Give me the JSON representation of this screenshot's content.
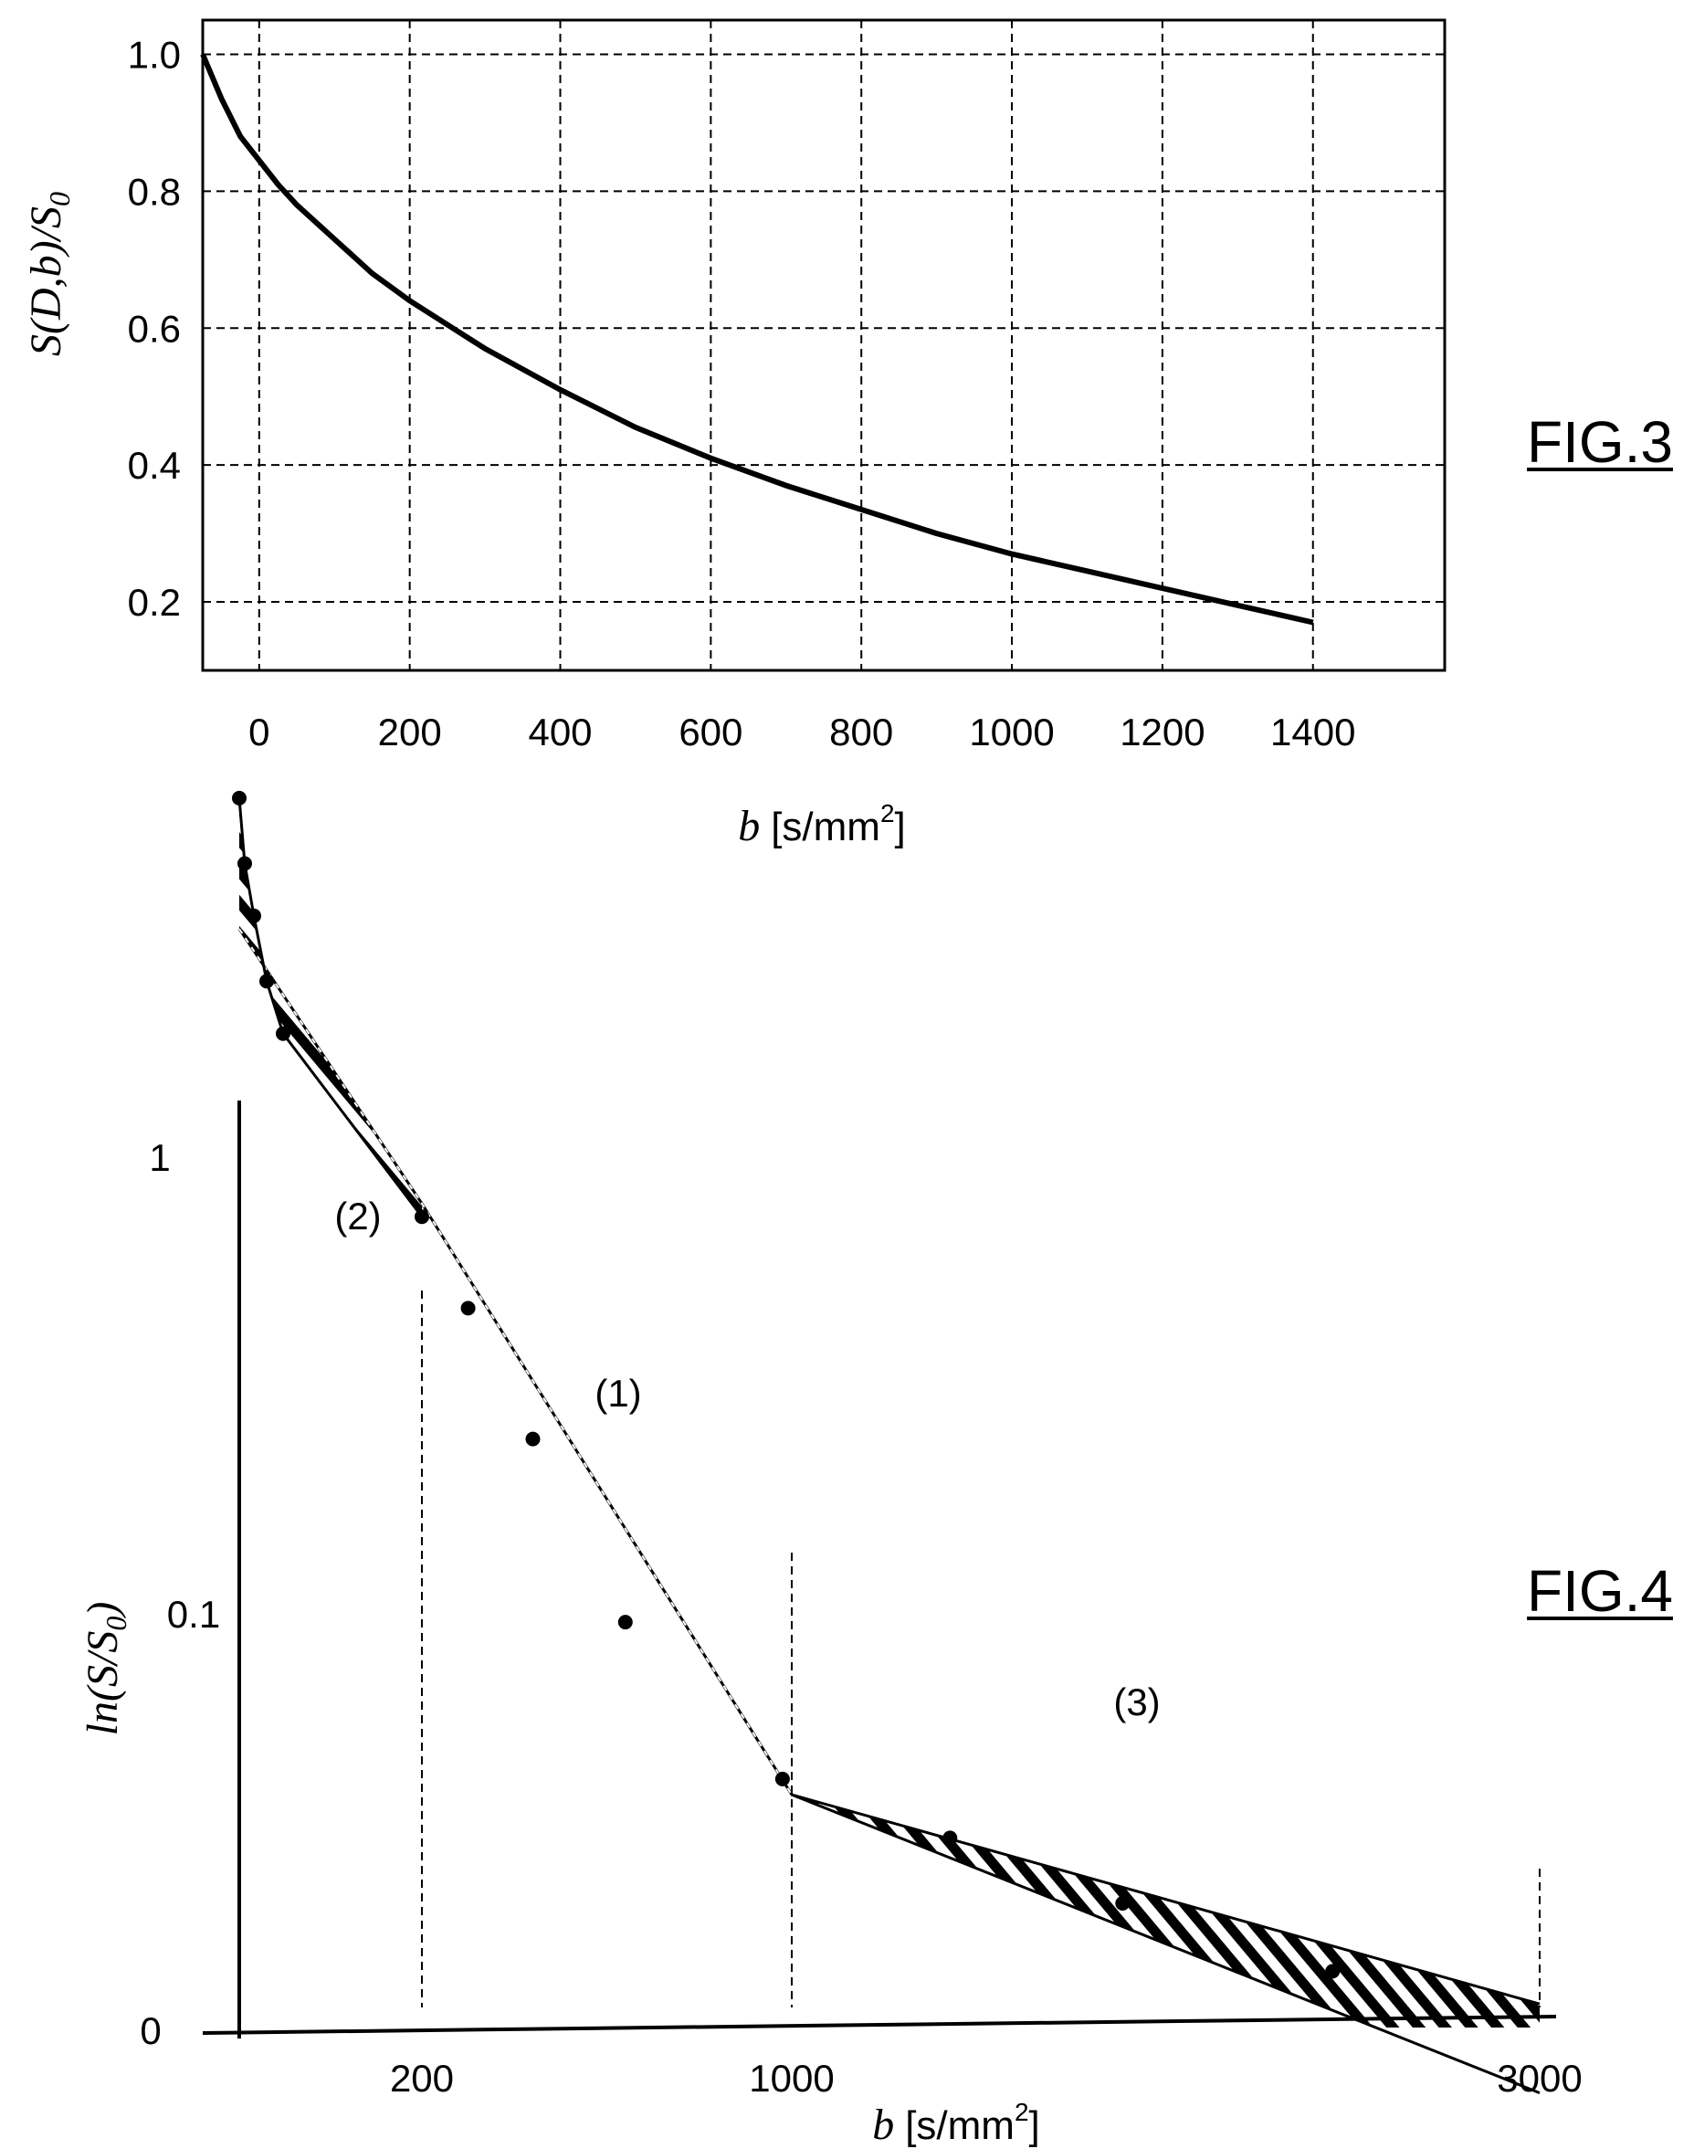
{
  "chart_data": [
    {
      "figure_label": "FIG.3",
      "type": "line",
      "xlabel_var": "b",
      "xlabel_unit": "[s/mm",
      "xlabel_sup": "2",
      "xlabel_close": "]",
      "ylabel": "S(D,b)/S",
      "ylabel_sub": "0",
      "xlim": [
        -75,
        1575
      ],
      "ylim": [
        0.1,
        1.05
      ],
      "x_ticks": [
        "0",
        "200",
        "400",
        "600",
        "800",
        "1000",
        "1200",
        "1400"
      ],
      "y_ticks": [
        "1.0",
        "0.8",
        "0.6",
        "0.4",
        "0.2"
      ],
      "grid": true,
      "series": [
        {
          "x": [
            -75,
            -50,
            -25,
            0,
            25,
            50,
            100,
            150,
            200,
            250,
            300,
            400,
            500,
            600,
            700,
            800,
            900,
            1000,
            1100,
            1200,
            1300,
            1400
          ],
          "y": [
            1.0,
            0.935,
            0.88,
            0.845,
            0.81,
            0.78,
            0.73,
            0.68,
            0.64,
            0.605,
            0.57,
            0.51,
            0.455,
            0.41,
            0.37,
            0.335,
            0.3,
            0.27,
            0.245,
            0.22,
            0.195,
            0.17
          ]
        }
      ]
    },
    {
      "figure_label": "FIG.4",
      "type": "scatter",
      "xlabel_var": "b",
      "xlabel_unit": "[s/mm",
      "xlabel_sup": "2",
      "xlabel_close": "]",
      "ylabel": "ln(S/S",
      "ylabel_sub": "0",
      "ylabel_close": ")",
      "x_ticks": [
        "200",
        "1000",
        "3000"
      ],
      "y_ticks": [
        "1",
        "0.1",
        "0"
      ],
      "region_labels": [
        "(2)",
        "(1)",
        "(3)"
      ],
      "points": [
        [
          0.0,
          0.94
        ],
        [
          0.03,
          0.89
        ],
        [
          0.08,
          0.85
        ],
        [
          0.15,
          0.8
        ],
        [
          0.24,
          0.76
        ],
        [
          1.0,
          0.62
        ],
        [
          1.25,
          0.55
        ],
        [
          1.6,
          0.45
        ],
        [
          2.1,
          0.31
        ],
        [
          2.95,
          0.19
        ],
        [
          3.55,
          0.145
        ],
        [
          4.15,
          0.095
        ],
        [
          4.88,
          0.043
        ]
      ],
      "fit_line_1": [
        [
          0.0,
          0.84
        ],
        [
          1.0,
          0.63
        ],
        [
          3.0,
          0.178
        ],
        [
          5.6,
          -0.05
        ]
      ],
      "fit_line_3": [
        [
          3.0,
          0.178
        ],
        [
          5.6,
          0.018
        ]
      ]
    }
  ]
}
